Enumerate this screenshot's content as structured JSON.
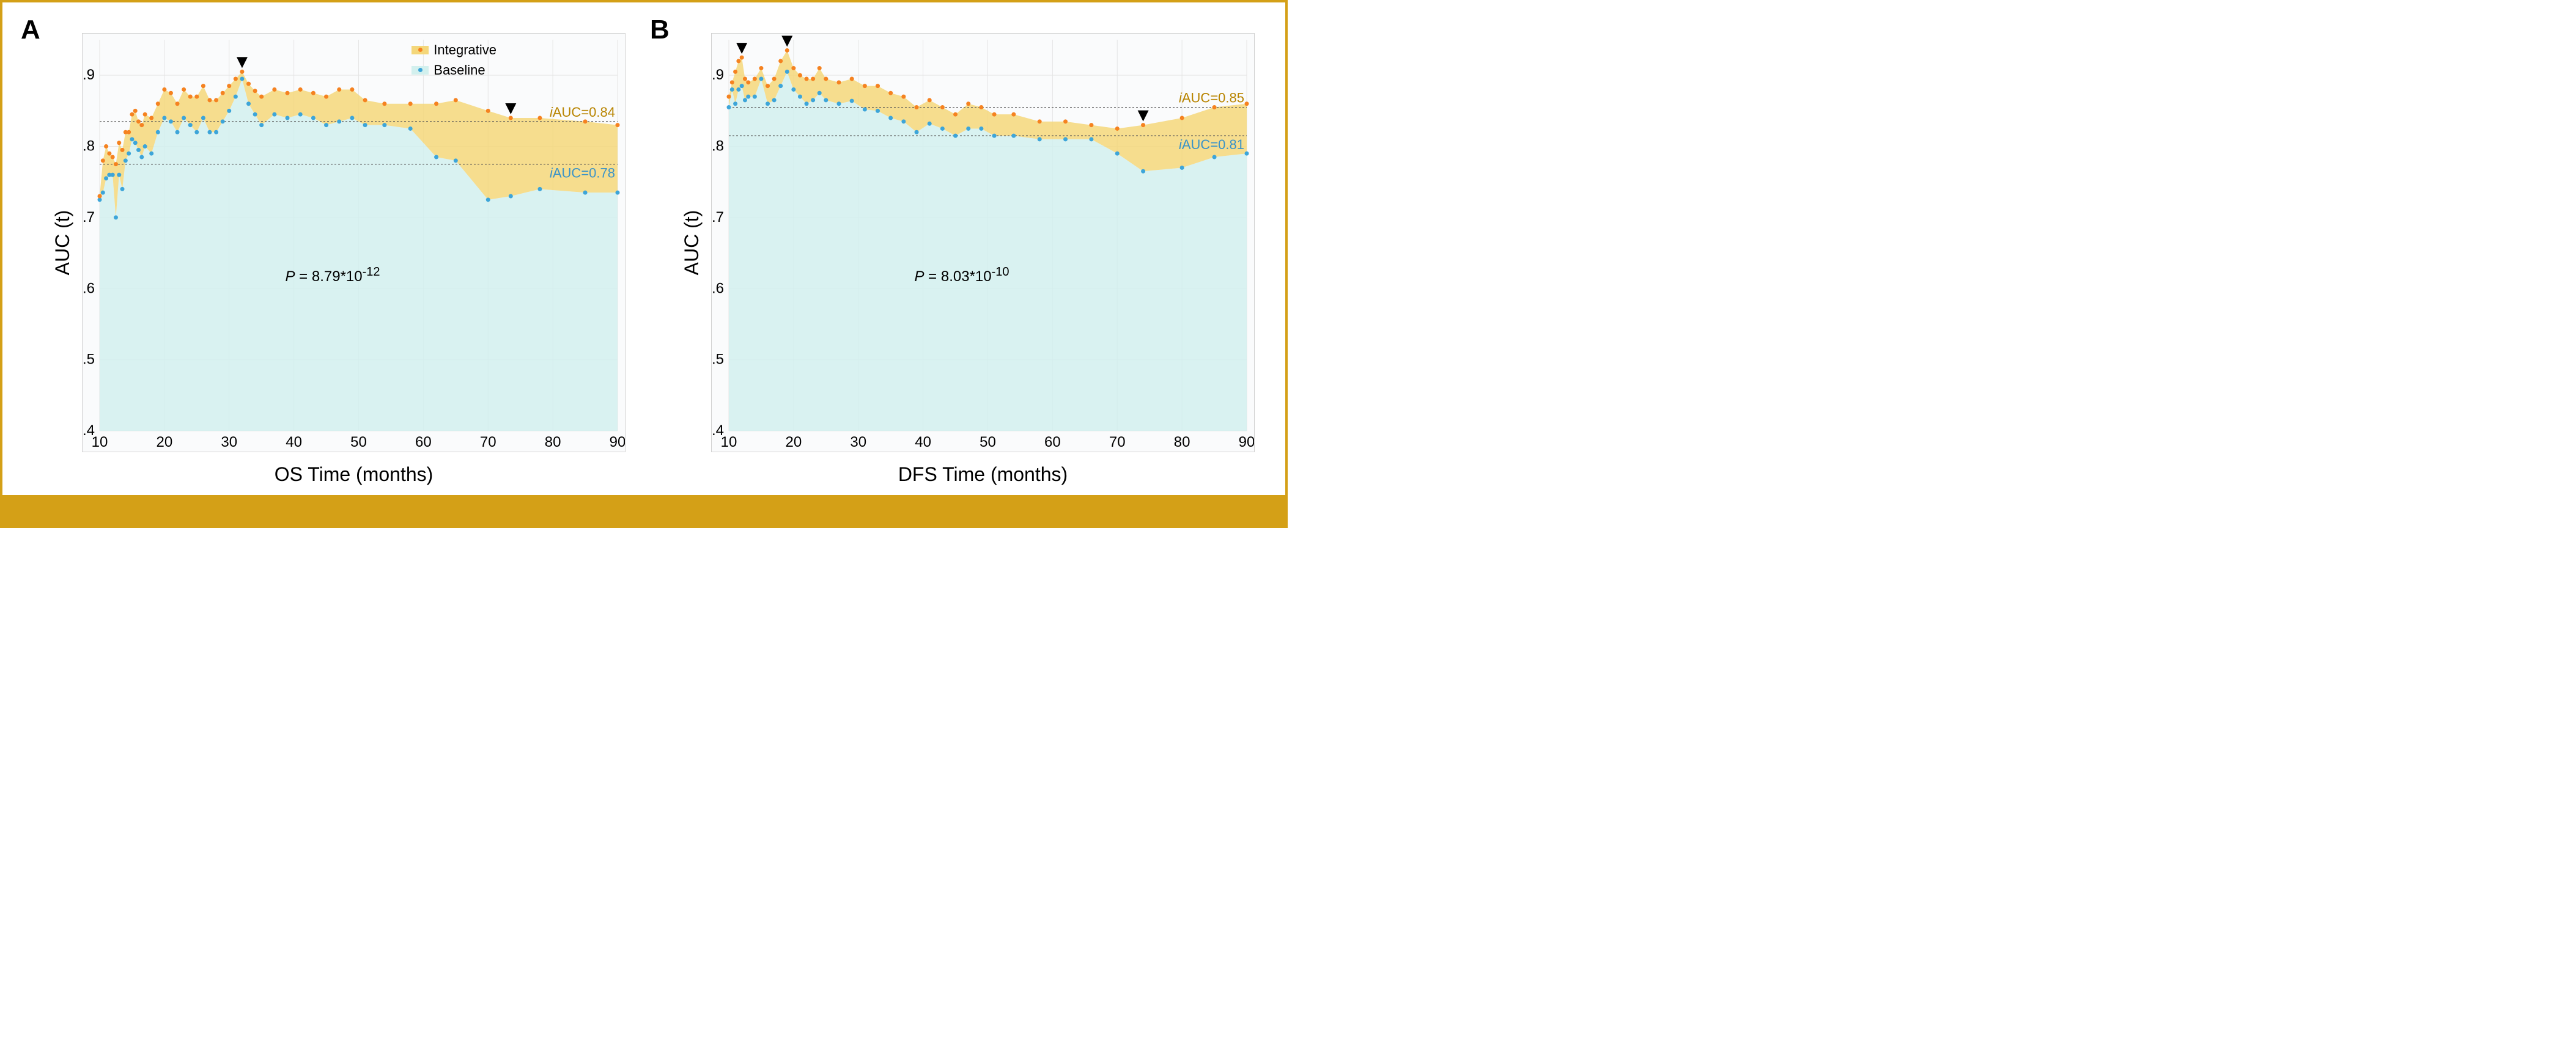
{
  "figure": {
    "border_color": "#d4a017",
    "bottom_bar_color": "#d4a017",
    "series_colors": {
      "integrative": "#f58220",
      "baseline": "#3da5d9"
    },
    "fill_colors": {
      "integrative": "#f4d77a",
      "baseline": "#d2f0ee"
    },
    "grid_color": "#e5e5e5",
    "ref_line_color": "#555555",
    "plot_bg": "#fafbfc",
    "legend": {
      "items": [
        {
          "label": "Integrative",
          "color_key": "integrative"
        },
        {
          "label": "Baseline",
          "color_key": "baseline"
        }
      ]
    }
  },
  "panels": [
    {
      "id": "A",
      "label": "A",
      "ylabel": "AUC (t)",
      "xlabel": "OS Time (months)",
      "xlim": [
        10,
        90
      ],
      "ylim": [
        0.4,
        0.95
      ],
      "xtick_step": 10,
      "yticks": [
        0.4,
        0.5,
        0.6,
        0.7,
        0.8,
        0.9
      ],
      "iauc_integrative": 0.84,
      "iauc_baseline": 0.78,
      "iauc_label_integrative": "iAUC=0.84",
      "iauc_label_baseline": "iAUC=0.78",
      "pvalue_html": "P = 8.79*10<sup>-12</sup>",
      "ref_lines": [
        0.835,
        0.775
      ],
      "arrows_x": [
        32,
        73.5
      ],
      "series": {
        "integrative": [
          [
            10,
            0.73
          ],
          [
            10.5,
            0.78
          ],
          [
            11,
            0.8
          ],
          [
            11.5,
            0.79
          ],
          [
            12,
            0.785
          ],
          [
            12.5,
            0.775
          ],
          [
            13,
            0.805
          ],
          [
            13.5,
            0.795
          ],
          [
            14,
            0.82
          ],
          [
            14.5,
            0.82
          ],
          [
            15,
            0.845
          ],
          [
            15.5,
            0.85
          ],
          [
            16,
            0.835
          ],
          [
            16.5,
            0.83
          ],
          [
            17,
            0.845
          ],
          [
            18,
            0.84
          ],
          [
            19,
            0.86
          ],
          [
            20,
            0.88
          ],
          [
            21,
            0.875
          ],
          [
            22,
            0.86
          ],
          [
            23,
            0.88
          ],
          [
            24,
            0.87
          ],
          [
            25,
            0.87
          ],
          [
            26,
            0.885
          ],
          [
            27,
            0.865
          ],
          [
            28,
            0.865
          ],
          [
            29,
            0.875
          ],
          [
            30,
            0.885
          ],
          [
            31,
            0.895
          ],
          [
            32,
            0.905
          ],
          [
            33,
            0.888
          ],
          [
            34,
            0.878
          ],
          [
            35,
            0.87
          ],
          [
            37,
            0.88
          ],
          [
            39,
            0.875
          ],
          [
            41,
            0.88
          ],
          [
            43,
            0.875
          ],
          [
            45,
            0.87
          ],
          [
            47,
            0.88
          ],
          [
            49,
            0.88
          ],
          [
            51,
            0.865
          ],
          [
            54,
            0.86
          ],
          [
            58,
            0.86
          ],
          [
            62,
            0.86
          ],
          [
            65,
            0.865
          ],
          [
            70,
            0.85
          ],
          [
            73.5,
            0.84
          ],
          [
            78,
            0.84
          ],
          [
            85,
            0.835
          ],
          [
            90,
            0.83
          ]
        ],
        "baseline": [
          [
            10,
            0.725
          ],
          [
            10.5,
            0.735
          ],
          [
            11,
            0.755
          ],
          [
            11.5,
            0.76
          ],
          [
            12,
            0.76
          ],
          [
            12.5,
            0.7
          ],
          [
            13,
            0.76
          ],
          [
            13.5,
            0.74
          ],
          [
            14,
            0.78
          ],
          [
            14.5,
            0.79
          ],
          [
            15,
            0.81
          ],
          [
            15.5,
            0.805
          ],
          [
            16,
            0.795
          ],
          [
            16.5,
            0.785
          ],
          [
            17,
            0.8
          ],
          [
            18,
            0.79
          ],
          [
            19,
            0.82
          ],
          [
            20,
            0.84
          ],
          [
            21,
            0.835
          ],
          [
            22,
            0.82
          ],
          [
            23,
            0.84
          ],
          [
            24,
            0.83
          ],
          [
            25,
            0.82
          ],
          [
            26,
            0.84
          ],
          [
            27,
            0.82
          ],
          [
            28,
            0.82
          ],
          [
            29,
            0.835
          ],
          [
            30,
            0.85
          ],
          [
            31,
            0.87
          ],
          [
            32,
            0.895
          ],
          [
            33,
            0.86
          ],
          [
            34,
            0.845
          ],
          [
            35,
            0.83
          ],
          [
            37,
            0.845
          ],
          [
            39,
            0.84
          ],
          [
            41,
            0.845
          ],
          [
            43,
            0.84
          ],
          [
            45,
            0.83
          ],
          [
            47,
            0.835
          ],
          [
            49,
            0.84
          ],
          [
            51,
            0.83
          ],
          [
            54,
            0.83
          ],
          [
            58,
            0.825
          ],
          [
            62,
            0.785
          ],
          [
            65,
            0.78
          ],
          [
            70,
            0.725
          ],
          [
            73.5,
            0.73
          ],
          [
            78,
            0.74
          ],
          [
            85,
            0.735
          ],
          [
            90,
            0.735
          ]
        ]
      }
    },
    {
      "id": "B",
      "label": "B",
      "ylabel": "AUC (t)",
      "xlabel": "DFS Time (months)",
      "xlim": [
        10,
        90
      ],
      "ylim": [
        0.4,
        0.95
      ],
      "xtick_step": 10,
      "yticks": [
        0.4,
        0.5,
        0.6,
        0.7,
        0.8,
        0.9
      ],
      "iauc_integrative": 0.85,
      "iauc_baseline": 0.81,
      "iauc_label_integrative": "iAUC=0.85",
      "iauc_label_baseline": "iAUC=0.81",
      "pvalue_html": "P = 8.03*10<sup>-10</sup>",
      "ref_lines": [
        0.855,
        0.815
      ],
      "arrows_x": [
        12,
        19,
        74
      ],
      "series": {
        "integrative": [
          [
            10,
            0.87
          ],
          [
            10.5,
            0.89
          ],
          [
            11,
            0.905
          ],
          [
            11.5,
            0.92
          ],
          [
            12,
            0.925
          ],
          [
            12.5,
            0.895
          ],
          [
            13,
            0.89
          ],
          [
            14,
            0.895
          ],
          [
            15,
            0.91
          ],
          [
            16,
            0.885
          ],
          [
            17,
            0.895
          ],
          [
            18,
            0.92
          ],
          [
            19,
            0.935
          ],
          [
            20,
            0.91
          ],
          [
            21,
            0.9
          ],
          [
            22,
            0.895
          ],
          [
            23,
            0.895
          ],
          [
            24,
            0.91
          ],
          [
            25,
            0.895
          ],
          [
            27,
            0.89
          ],
          [
            29,
            0.895
          ],
          [
            31,
            0.885
          ],
          [
            33,
            0.885
          ],
          [
            35,
            0.875
          ],
          [
            37,
            0.87
          ],
          [
            39,
            0.855
          ],
          [
            41,
            0.865
          ],
          [
            43,
            0.855
          ],
          [
            45,
            0.845
          ],
          [
            47,
            0.86
          ],
          [
            49,
            0.855
          ],
          [
            51,
            0.845
          ],
          [
            54,
            0.845
          ],
          [
            58,
            0.835
          ],
          [
            62,
            0.835
          ],
          [
            66,
            0.83
          ],
          [
            70,
            0.825
          ],
          [
            74,
            0.83
          ],
          [
            80,
            0.84
          ],
          [
            85,
            0.855
          ],
          [
            90,
            0.86
          ]
        ],
        "baseline": [
          [
            10,
            0.855
          ],
          [
            10.5,
            0.88
          ],
          [
            11,
            0.86
          ],
          [
            11.5,
            0.88
          ],
          [
            12,
            0.885
          ],
          [
            12.5,
            0.865
          ],
          [
            13,
            0.87
          ],
          [
            14,
            0.87
          ],
          [
            15,
            0.895
          ],
          [
            16,
            0.86
          ],
          [
            17,
            0.865
          ],
          [
            18,
            0.885
          ],
          [
            19,
            0.905
          ],
          [
            20,
            0.88
          ],
          [
            21,
            0.87
          ],
          [
            22,
            0.86
          ],
          [
            23,
            0.865
          ],
          [
            24,
            0.875
          ],
          [
            25,
            0.865
          ],
          [
            27,
            0.86
          ],
          [
            29,
            0.864
          ],
          [
            31,
            0.852
          ],
          [
            33,
            0.85
          ],
          [
            35,
            0.84
          ],
          [
            37,
            0.835
          ],
          [
            39,
            0.82
          ],
          [
            41,
            0.832
          ],
          [
            43,
            0.825
          ],
          [
            45,
            0.815
          ],
          [
            47,
            0.825
          ],
          [
            49,
            0.825
          ],
          [
            51,
            0.815
          ],
          [
            54,
            0.815
          ],
          [
            58,
            0.81
          ],
          [
            62,
            0.81
          ],
          [
            66,
            0.81
          ],
          [
            70,
            0.79
          ],
          [
            74,
            0.765
          ],
          [
            80,
            0.77
          ],
          [
            85,
            0.785
          ],
          [
            90,
            0.79
          ]
        ]
      }
    }
  ]
}
